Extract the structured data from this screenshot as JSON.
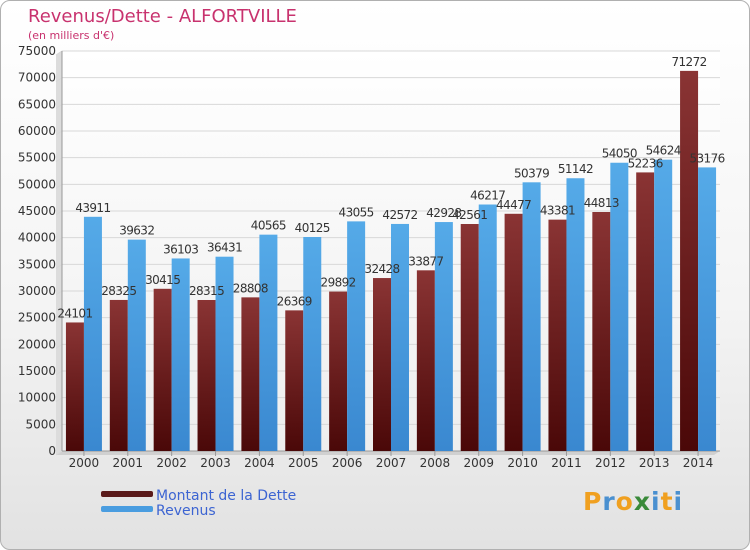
{
  "title": "Revenus/Dette - ALFORTVILLE",
  "subtitle": "(en milliers d'€)",
  "logo": {
    "letters": [
      "P",
      "r",
      "o",
      "x",
      "i",
      "t",
      "i"
    ],
    "colors": [
      "#f0a020",
      "#4a90d0",
      "#f0a020",
      "#3a8a3a",
      "#4a90d0",
      "#f0a020",
      "#4a90d0"
    ]
  },
  "colors": {
    "dette": "#7a2a2a",
    "revenus": "#4a9de0",
    "title": "#c8326e",
    "legend_text": "#3c64d2"
  },
  "chart_data": {
    "type": "bar",
    "title": "Revenus/Dette - ALFORTVILLE",
    "subtitle": "(en milliers d'€)",
    "categories": [
      "2000",
      "2001",
      "2002",
      "2003",
      "2004",
      "2005",
      "2006",
      "2007",
      "2008",
      "2009",
      "2010",
      "2011",
      "2012",
      "2013",
      "2014"
    ],
    "series": [
      {
        "name": "Montant de la Dette",
        "values": [
          24101,
          28325,
          30415,
          28315,
          28808,
          26369,
          29892,
          32428,
          33877,
          42561,
          44477,
          43381,
          44813,
          52236,
          71272
        ],
        "labels": [
          "24101",
          "28325",
          "30415",
          "28315",
          "28808",
          "26369",
          "29892",
          "32428",
          "33877",
          "42561",
          "44477",
          "43381",
          "44813",
          "52236",
          "71272"
        ]
      },
      {
        "name": "Revenus",
        "values": [
          43911,
          39632,
          36103,
          36431,
          40565,
          40125,
          43055,
          42572,
          42928,
          46217,
          50379,
          51142,
          54050,
          54624,
          53176
        ],
        "labels": [
          "43911",
          "39632",
          "36103",
          "36431",
          "40565",
          "40125",
          "43055",
          "42572",
          "42928",
          "46217",
          "50379",
          "51142",
          "54050",
          "54624",
          "53176"
        ]
      }
    ],
    "yticks": [
      0,
      5000,
      10000,
      15000,
      20000,
      25000,
      30000,
      35000,
      40000,
      45000,
      50000,
      55000,
      60000,
      65000,
      70000,
      75000
    ],
    "ylim": [
      0,
      75000
    ],
    "grid": true,
    "legend_position": "bottom-left"
  }
}
